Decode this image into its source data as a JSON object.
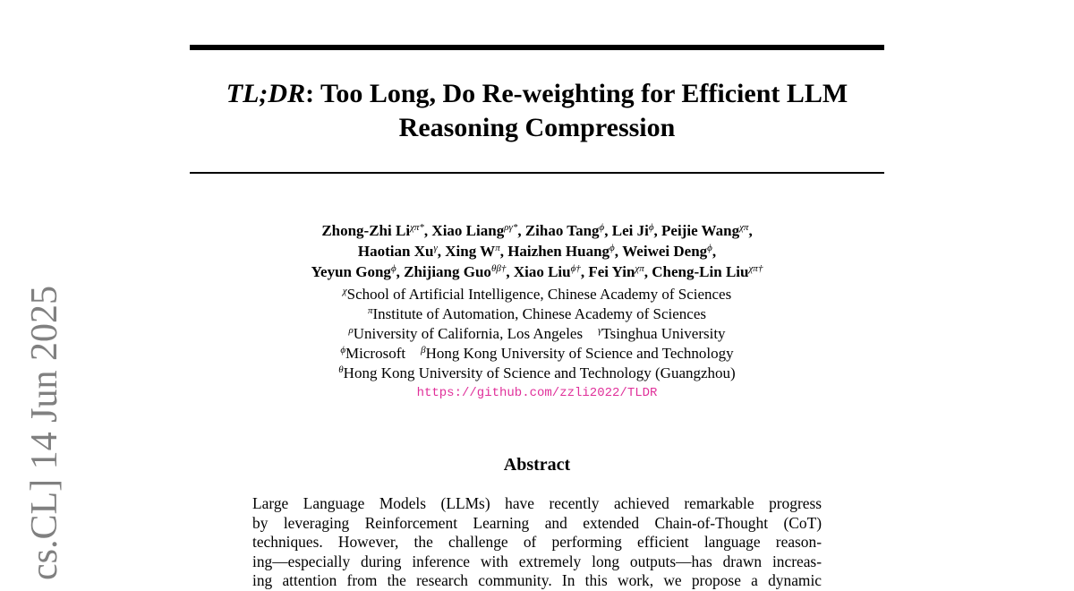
{
  "sidebar": {
    "arxiv_stamp": "cs.CL]  14 Jun 2025"
  },
  "title": {
    "italic": "TL;DR",
    "rest_line1": ": Too Long, Do Re-weighting for Efficient LLM",
    "line2": "Reasoning Compression"
  },
  "authors": [
    [
      [
        "Zhong-Zhi Li",
        "χπ*"
      ],
      [
        "Xiao Liang",
        "ργ*"
      ],
      [
        "Zihao Tang",
        "ϕ"
      ],
      [
        "Lei Ji",
        "ϕ"
      ],
      [
        "Peijie Wang",
        "χπ"
      ]
    ],
    [
      [
        "Haotian Xu",
        "γ"
      ],
      [
        "Xing W",
        "π"
      ],
      [
        "Haizhen Huang",
        "ϕ"
      ],
      [
        "Weiwei Deng",
        "ϕ"
      ]
    ],
    [
      [
        "Yeyun Gong",
        "ϕ"
      ],
      [
        "Zhijiang Guo",
        "θβ†"
      ],
      [
        "Xiao Liu",
        "ϕ†"
      ],
      [
        "Fei Yin",
        "χπ"
      ],
      [
        "Cheng-Lin Liu",
        "χπ†"
      ]
    ]
  ],
  "affiliations": [
    [
      [
        "χ",
        "School of Artificial Intelligence, Chinese Academy of Sciences"
      ]
    ],
    [
      [
        "π",
        "Institute of Automation, Chinese Academy of Sciences"
      ]
    ],
    [
      [
        "ρ",
        "University of California, Los Angeles"
      ],
      [
        "γ",
        "Tsinghua University"
      ]
    ],
    [
      [
        "ϕ",
        "Microsoft"
      ],
      [
        "β",
        "Hong Kong University of Science and Technology"
      ]
    ],
    [
      [
        "θ",
        "Hong Kong University of Science and Technology (Guangzhou)"
      ]
    ]
  ],
  "url": "https://github.com/zzli2022/TLDR",
  "abstract": {
    "heading": "Abstract",
    "lines": [
      "Large Language Models (LLMs) have recently achieved remarkable progress",
      "by leveraging Reinforcement Learning and extended Chain-of-Thought (CoT)",
      "techniques.  However, the challenge of performing efficient language reason-",
      "ing—especially during inference with extremely long outputs—has drawn increas-",
      "ing attention from the research community. In this work, we propose a dynamic"
    ]
  }
}
